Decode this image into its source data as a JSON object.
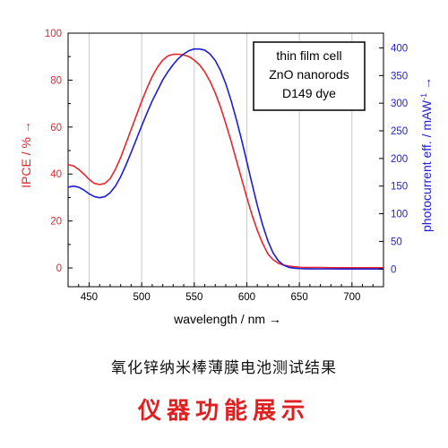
{
  "chart_data": {
    "type": "line",
    "title": "",
    "xlabel": "wavelength / nm →",
    "ylabel_left": "IPCE / % →",
    "ylabel_right_main": "photocurrent eff. / mAW",
    "ylabel_right_sup": "-1",
    "ylabel_right_end": " →",
    "xlim": [
      430,
      730
    ],
    "ylim_left": [
      -8,
      100
    ],
    "ylim_right": [
      -32,
      426.67
    ],
    "x_ticks": [
      450,
      500,
      550,
      600,
      650,
      700
    ],
    "left_ticks": [
      0,
      20,
      40,
      60,
      80,
      100
    ],
    "right_ticks": [
      0,
      50,
      100,
      150,
      200,
      250,
      300,
      350,
      400
    ],
    "grid": "vertical",
    "legend": {
      "position": "top-right",
      "lines": [
        "thin film cell",
        "ZnO nanorods",
        "D149 dye"
      ]
    },
    "series": [
      {
        "axis": "left",
        "color": "#e8262b",
        "x": [
          430,
          435,
          440,
          445,
          450,
          455,
          460,
          465,
          470,
          475,
          480,
          485,
          490,
          495,
          500,
          505,
          510,
          515,
          520,
          525,
          530,
          535,
          540,
          545,
          550,
          555,
          560,
          565,
          570,
          575,
          580,
          585,
          590,
          595,
          600,
          605,
          610,
          615,
          620,
          625,
          630,
          635,
          640,
          645,
          650,
          655,
          660,
          670,
          680,
          690,
          700,
          710,
          720,
          730
        ],
        "values": [
          44,
          43.5,
          42,
          40,
          37.7,
          36,
          35.5,
          36,
          38,
          42,
          47,
          53,
          59,
          65,
          71,
          76.5,
          81.5,
          85.5,
          88.5,
          90.3,
          91,
          91,
          90.7,
          90,
          88.5,
          86.5,
          83.5,
          79.5,
          74.5,
          68.5,
          61.5,
          54,
          46,
          38,
          30,
          22.5,
          16,
          10.5,
          6,
          3.5,
          2,
          1.2,
          0.8,
          0.5,
          0.3,
          0.2,
          0.2,
          0.2,
          0.1,
          0.1,
          0.1,
          0.1,
          0.1,
          0.1
        ]
      },
      {
        "axis": "right",
        "color": "#1d1dd6",
        "x": [
          430,
          435,
          440,
          445,
          450,
          455,
          460,
          465,
          470,
          475,
          480,
          485,
          490,
          495,
          500,
          505,
          510,
          515,
          520,
          525,
          530,
          535,
          540,
          545,
          550,
          555,
          560,
          565,
          570,
          575,
          580,
          585,
          590,
          595,
          600,
          605,
          610,
          615,
          620,
          625,
          630,
          635,
          640,
          645,
          650,
          655,
          660,
          670,
          680,
          690,
          700,
          710,
          720,
          730
        ],
        "values": [
          148,
          150,
          148,
          143,
          136,
          131,
          129,
          131,
          138,
          150,
          167,
          188,
          211,
          235,
          259,
          282,
          304,
          323,
          342,
          357,
          370,
          381,
          389,
          395,
          398,
          398,
          396,
          389,
          377,
          359,
          335,
          305,
          271,
          234,
          194,
          154,
          115,
          80,
          51,
          29,
          15,
          7,
          3,
          1.5,
          0.8,
          0.5,
          0.3,
          0.2,
          0.2,
          0.1,
          0.1,
          0.1,
          0.1,
          0.1
        ]
      }
    ]
  },
  "captions": {
    "line1": "氧化锌纳米棒薄膜电池测试结果",
    "line2": "仪器功能展示"
  }
}
